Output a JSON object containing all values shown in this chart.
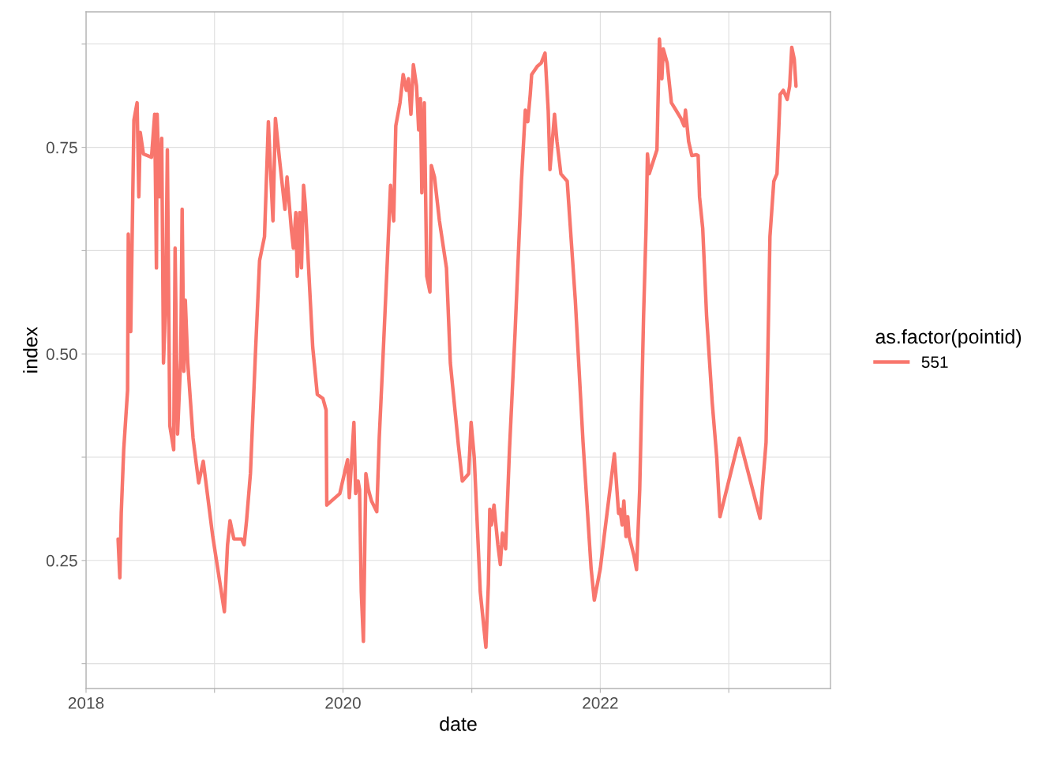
{
  "chart_data": {
    "type": "line",
    "xlabel": "date",
    "ylabel": "index",
    "legend_title": "as.factor(pointid)",
    "legend": "right",
    "grid": true,
    "line_style": "solid",
    "marker": "none",
    "xlim": [
      "2018-01-01",
      "2023-10-17"
    ],
    "xticks": [
      {
        "value": "2018-01-01",
        "label": "2018"
      },
      {
        "value": "2019-01-01",
        "label": null
      },
      {
        "value": "2020-01-01",
        "label": "2020"
      },
      {
        "value": "2021-01-01",
        "label": null
      },
      {
        "value": "2022-01-01",
        "label": "2022"
      },
      {
        "value": "2023-01-01",
        "label": null
      }
    ],
    "ylim": [
      0.095,
      0.914
    ],
    "yticks": [
      {
        "value": 0.125,
        "label": null
      },
      {
        "value": 0.25,
        "label": "0.25"
      },
      {
        "value": 0.375,
        "label": null
      },
      {
        "value": 0.5,
        "label": "0.50"
      },
      {
        "value": 0.625,
        "label": null
      },
      {
        "value": 0.75,
        "label": "0.75"
      },
      {
        "value": 0.875,
        "label": null
      }
    ],
    "series": [
      {
        "name": "551",
        "color": "#f8766d",
        "x": [
          "2018-04-02",
          "2018-04-07",
          "2018-04-11",
          "2018-04-18",
          "2018-04-29",
          "2018-05-01",
          "2018-05-08",
          "2018-05-12",
          "2018-05-17",
          "2018-05-26",
          "2018-05-31",
          "2018-06-04",
          "2018-06-13",
          "2018-07-06",
          "2018-07-15",
          "2018-07-20",
          "2018-07-22",
          "2018-07-29",
          "2018-08-04",
          "2018-08-09",
          "2018-08-15",
          "2018-08-20",
          "2018-08-27",
          "2018-09-07",
          "2018-09-11",
          "2018-09-18",
          "2018-09-27",
          "2018-10-01",
          "2018-10-06",
          "2018-10-10",
          "2018-10-17",
          "2018-11-01",
          "2018-11-17",
          "2018-11-30",
          "2018-12-27",
          "2019-01-29",
          "2019-02-07",
          "2019-02-14",
          "2019-02-25",
          "2019-03-19",
          "2019-03-26",
          "2019-04-02",
          "2019-04-13",
          "2019-04-28",
          "2019-05-09",
          "2019-05-23",
          "2019-06-03",
          "2019-06-09",
          "2019-06-16",
          "2019-06-23",
          "2019-07-04",
          "2019-07-20",
          "2019-07-26",
          "2019-08-07",
          "2019-08-13",
          "2019-08-20",
          "2019-08-24",
          "2019-08-31",
          "2019-09-05",
          "2019-09-11",
          "2019-09-16",
          "2019-10-07",
          "2019-10-20",
          "2019-11-05",
          "2019-11-14",
          "2019-11-16",
          "2019-12-23",
          "2020-01-14",
          "2020-01-19",
          "2020-02-01",
          "2020-02-06",
          "2020-02-13",
          "2020-02-17",
          "2020-02-22",
          "2020-02-28",
          "2020-03-06",
          "2020-03-13",
          "2020-03-22",
          "2020-04-06",
          "2020-04-13",
          "2020-04-24",
          "2020-05-06",
          "2020-05-15",
          "2020-05-24",
          "2020-05-30",
          "2020-06-11",
          "2020-06-20",
          "2020-06-29",
          "2020-07-05",
          "2020-07-12",
          "2020-07-19",
          "2020-07-28",
          "2020-08-03",
          "2020-08-08",
          "2020-08-12",
          "2020-08-19",
          "2020-08-26",
          "2020-09-04",
          "2020-09-08",
          "2020-09-17",
          "2020-10-01",
          "2020-10-21",
          "2020-11-01",
          "2020-11-24",
          "2020-12-05",
          "2020-12-23",
          "2020-12-30",
          "2021-01-08",
          "2021-01-25",
          "2021-02-10",
          "2021-02-17",
          "2021-02-21",
          "2021-02-26",
          "2021-03-05",
          "2021-03-16",
          "2021-03-23",
          "2021-03-29",
          "2021-04-07",
          "2021-04-18",
          "2021-05-04",
          "2021-05-22",
          "2021-06-02",
          "2021-06-09",
          "2021-06-16",
          "2021-06-20",
          "2021-07-06",
          "2021-07-17",
          "2021-07-28",
          "2021-08-06",
          "2021-08-11",
          "2021-08-24",
          "2021-08-31",
          "2021-09-11",
          "2021-09-29",
          "2021-10-22",
          "2021-11-13",
          "2021-12-06",
          "2021-12-15",
          "2022-01-01",
          "2022-01-12",
          "2022-02-10",
          "2022-02-22",
          "2022-02-26",
          "2022-03-04",
          "2022-03-09",
          "2022-03-15",
          "2022-03-20",
          "2022-03-24",
          "2022-04-07",
          "2022-04-14",
          "2022-04-23",
          "2022-05-04",
          "2022-05-11",
          "2022-05-15",
          "2022-05-20",
          "2022-06-11",
          "2022-06-18",
          "2022-06-25",
          "2022-06-29",
          "2022-07-10",
          "2022-07-22",
          "2022-08-04",
          "2022-08-18",
          "2022-08-27",
          "2022-08-31",
          "2022-09-09",
          "2022-09-18",
          "2022-10-01",
          "2022-10-06",
          "2022-10-10",
          "2022-10-19",
          "2022-10-30",
          "2022-11-15",
          "2022-11-28",
          "2022-12-07",
          "2023-01-31",
          "2023-03-31",
          "2023-04-08",
          "2023-04-17",
          "2023-04-22",
          "2023-04-28",
          "2023-05-09",
          "2023-05-18",
          "2023-05-27",
          "2023-06-05",
          "2023-06-16",
          "2023-06-23",
          "2023-06-29",
          "2023-07-06",
          "2023-07-11"
        ],
        "values": [
          0.276,
          0.229,
          0.307,
          0.384,
          0.456,
          0.645,
          0.527,
          0.642,
          0.783,
          0.804,
          0.69,
          0.768,
          0.742,
          0.738,
          0.79,
          0.604,
          0.79,
          0.69,
          0.761,
          0.489,
          0.556,
          0.747,
          0.413,
          0.384,
          0.628,
          0.403,
          0.494,
          0.675,
          0.479,
          0.565,
          0.489,
          0.398,
          0.344,
          0.37,
          0.279,
          0.188,
          0.269,
          0.298,
          0.276,
          0.276,
          0.269,
          0.298,
          0.355,
          0.508,
          0.613,
          0.642,
          0.781,
          0.723,
          0.661,
          0.785,
          0.738,
          0.675,
          0.714,
          0.652,
          0.628,
          0.671,
          0.594,
          0.671,
          0.604,
          0.704,
          0.68,
          0.508,
          0.451,
          0.446,
          0.432,
          0.317,
          0.331,
          0.372,
          0.326,
          0.417,
          0.331,
          0.346,
          0.336,
          0.212,
          0.152,
          0.355,
          0.336,
          0.322,
          0.309,
          0.398,
          0.499,
          0.613,
          0.704,
          0.661,
          0.776,
          0.804,
          0.838,
          0.819,
          0.833,
          0.79,
          0.85,
          0.824,
          0.771,
          0.809,
          0.695,
          0.804,
          0.594,
          0.575,
          0.728,
          0.714,
          0.661,
          0.604,
          0.489,
          0.389,
          0.346,
          0.355,
          0.417,
          0.374,
          0.212,
          0.145,
          0.221,
          0.312,
          0.293,
          0.317,
          0.269,
          0.245,
          0.283,
          0.264,
          0.384,
          0.527,
          0.709,
          0.795,
          0.781,
          0.814,
          0.838,
          0.848,
          0.852,
          0.864,
          0.795,
          0.723,
          0.79,
          0.757,
          0.718,
          0.709,
          0.565,
          0.393,
          0.24,
          0.202,
          0.24,
          0.279,
          0.379,
          0.307,
          0.312,
          0.293,
          0.322,
          0.279,
          0.303,
          0.279,
          0.255,
          0.239,
          0.336,
          0.546,
          0.652,
          0.742,
          0.718,
          0.747,
          0.881,
          0.833,
          0.869,
          0.852,
          0.804,
          0.795,
          0.785,
          0.776,
          0.795,
          0.757,
          0.74,
          0.741,
          0.74,
          0.69,
          0.652,
          0.546,
          0.441,
          0.374,
          0.303,
          0.398,
          0.301,
          0.346,
          0.393,
          0.499,
          0.642,
          0.709,
          0.718,
          0.814,
          0.819,
          0.808,
          0.824,
          0.871,
          0.857,
          0.824
        ]
      }
    ]
  }
}
